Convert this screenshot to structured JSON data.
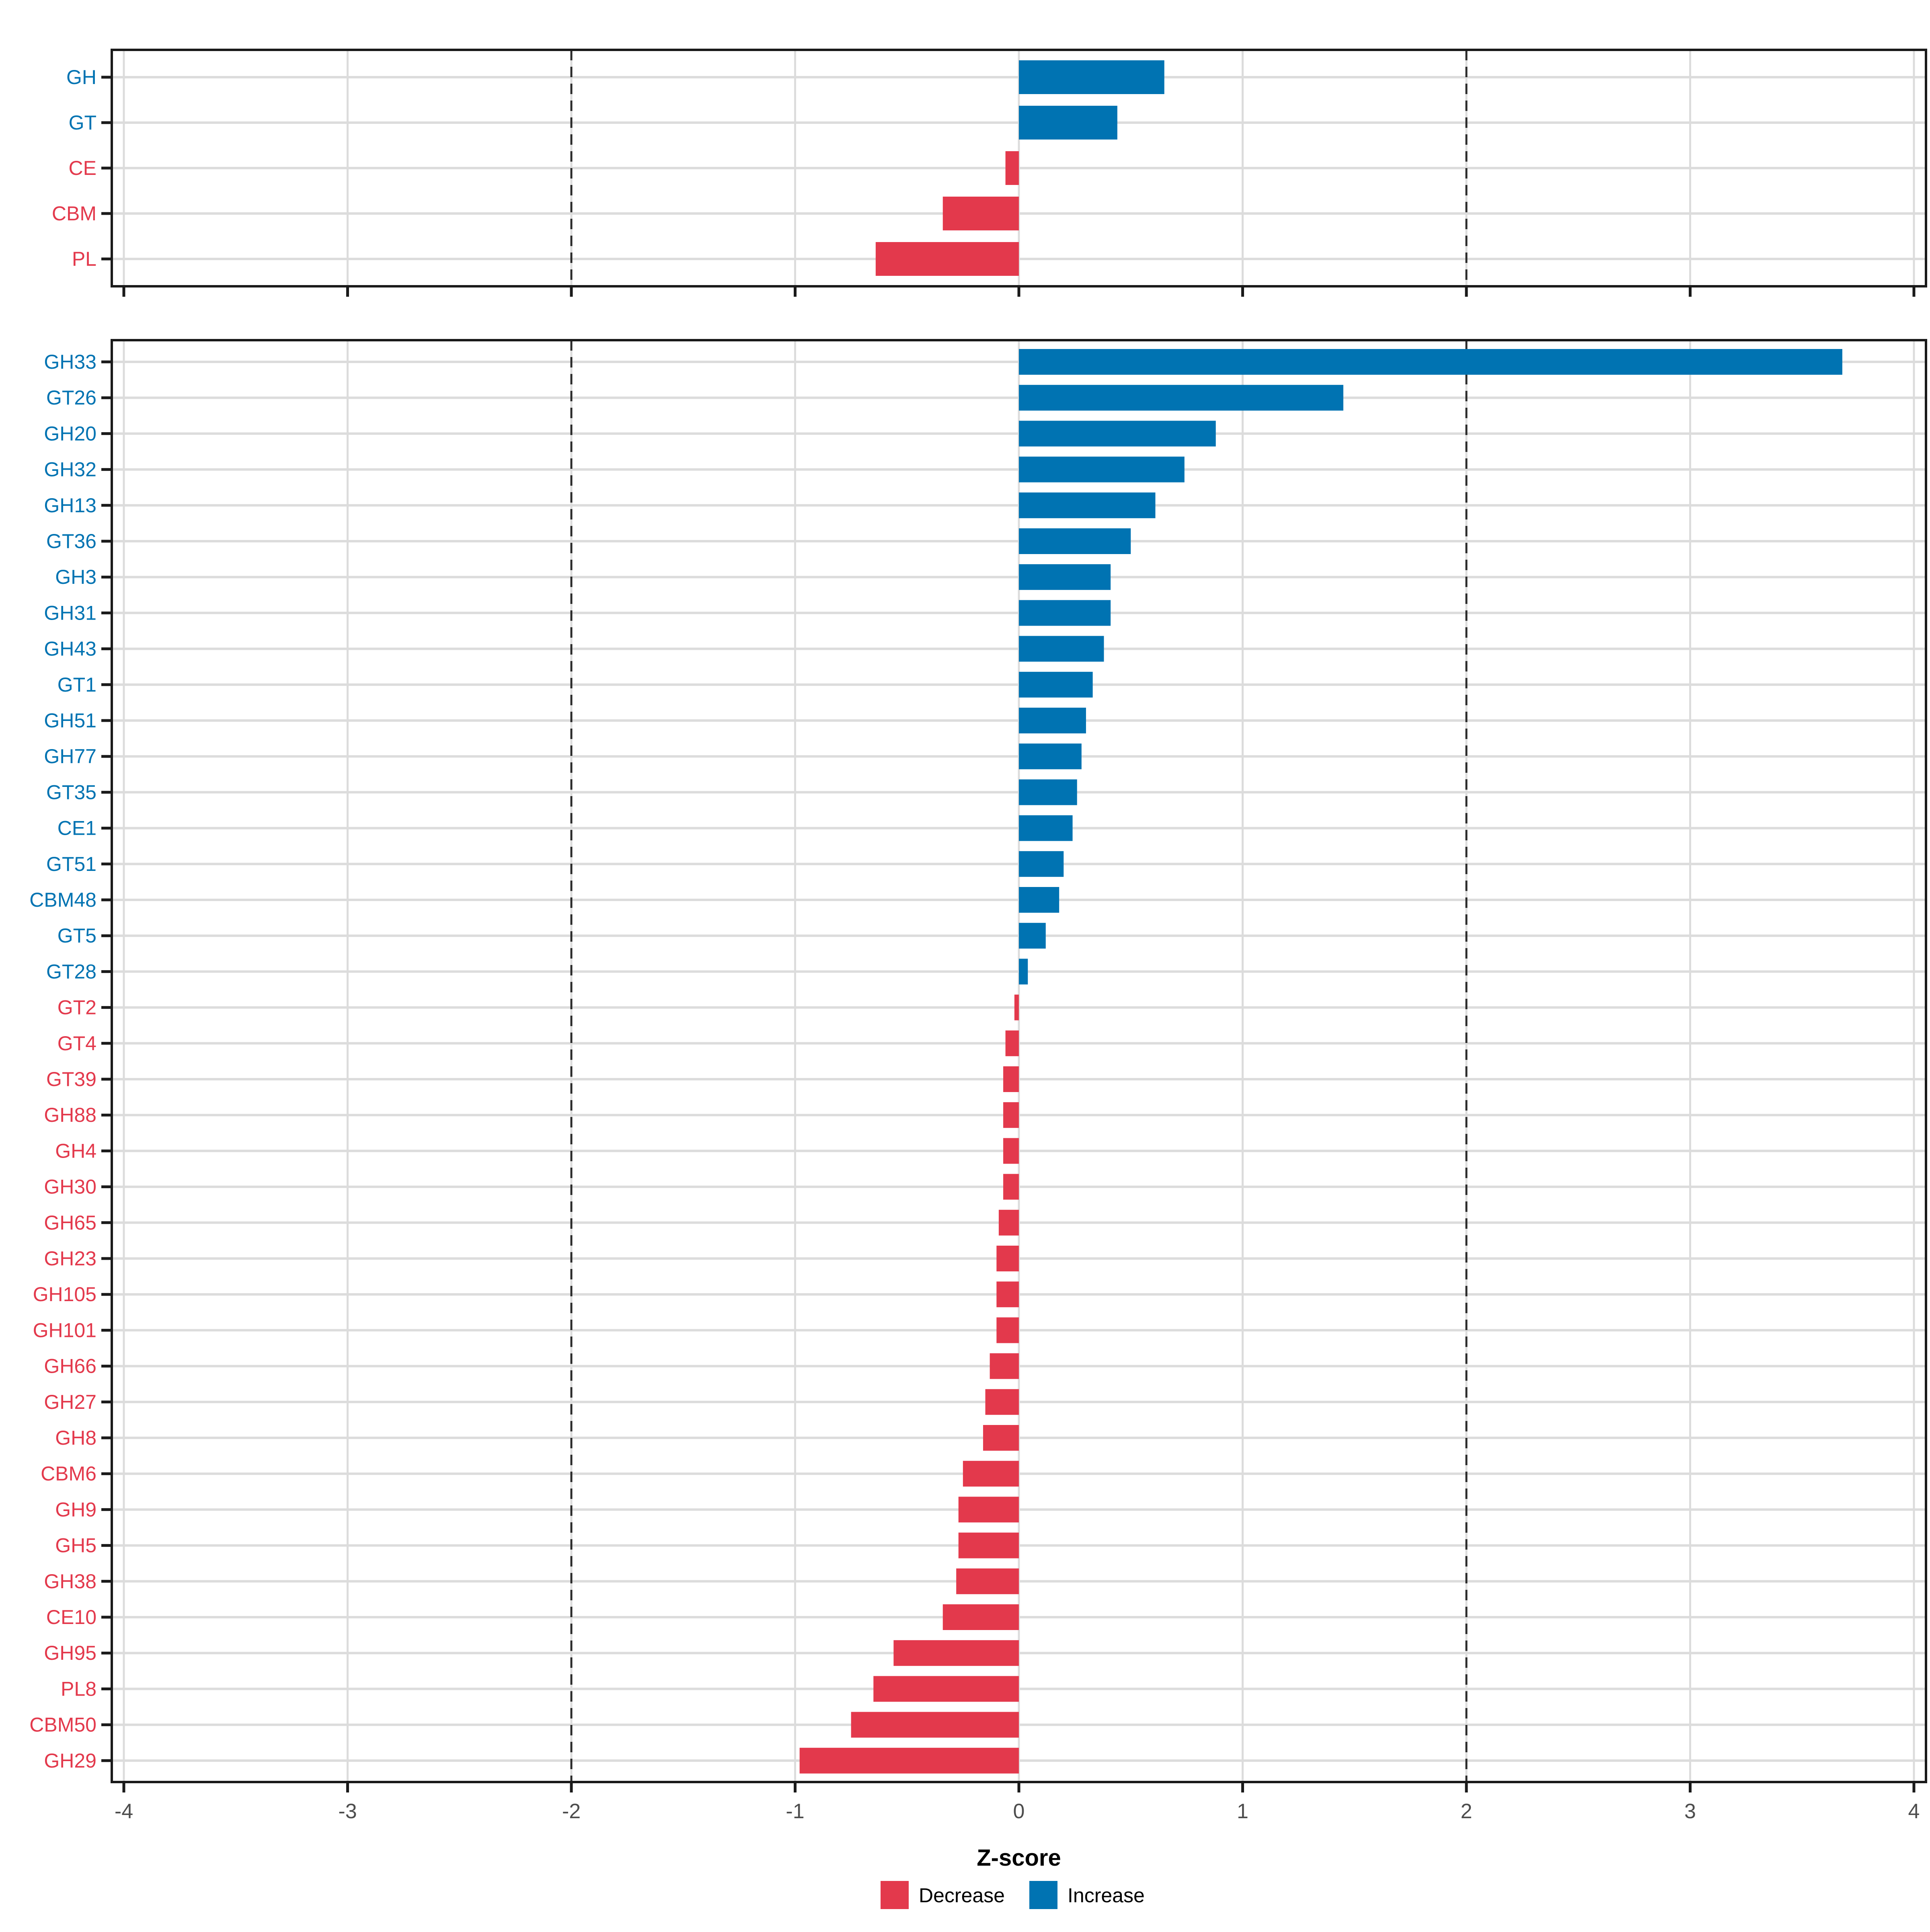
{
  "chart_data": {
    "type": "bar",
    "orientation": "horizontal",
    "xlabel": "Z-score",
    "xlim": [
      -4.05,
      4.05
    ],
    "xticks": [
      -4,
      -3,
      -2,
      -1,
      0,
      1,
      2,
      3,
      4
    ],
    "reference_lines": [
      -2,
      2
    ],
    "grid": "on",
    "legend_position": "bottom-center",
    "colors": {
      "increase": "#0073B2",
      "decrease": "#E3394C",
      "grid": "#DCDCDC",
      "reference": "#2B2B2B",
      "border": "#1A1A1A",
      "tick_label": "#4D4D4D",
      "axis_title": "#000000"
    },
    "legend": [
      {
        "label": "Decrease",
        "color": "#E3394C"
      },
      {
        "label": "Increase",
        "color": "#0073B2"
      }
    ],
    "panels": [
      {
        "name": "cazyme-class-panel",
        "categories": [
          "GH",
          "GT",
          "CE",
          "CBM",
          "PL"
        ],
        "values": [
          0.65,
          0.44,
          -0.06,
          -0.34,
          -0.64
        ]
      },
      {
        "name": "cazyme-family-panel",
        "categories": [
          "GH33",
          "GT26",
          "GH20",
          "GH32",
          "GH13",
          "GT36",
          "GH3",
          "GH31",
          "GH43",
          "GT1",
          "GH51",
          "GH77",
          "GT35",
          "CE1",
          "GT51",
          "CBM48",
          "GT5",
          "GT28",
          "GT2",
          "GT4",
          "GT39",
          "GH88",
          "GH4",
          "GH30",
          "GH65",
          "GH23",
          "GH105",
          "GH101",
          "GH66",
          "GH27",
          "GH8",
          "CBM6",
          "GH9",
          "GH5",
          "GH38",
          "CE10",
          "GH95",
          "PL8",
          "CBM50",
          "GH29"
        ],
        "values": [
          3.68,
          1.45,
          0.88,
          0.74,
          0.61,
          0.5,
          0.41,
          0.41,
          0.38,
          0.33,
          0.3,
          0.28,
          0.26,
          0.24,
          0.2,
          0.18,
          0.12,
          0.04,
          -0.02,
          -0.06,
          -0.07,
          -0.07,
          -0.07,
          -0.07,
          -0.09,
          -0.1,
          -0.1,
          -0.1,
          -0.13,
          -0.15,
          -0.16,
          -0.25,
          -0.27,
          -0.27,
          -0.28,
          -0.34,
          -0.56,
          -0.65,
          -0.75,
          -0.98
        ]
      }
    ]
  }
}
